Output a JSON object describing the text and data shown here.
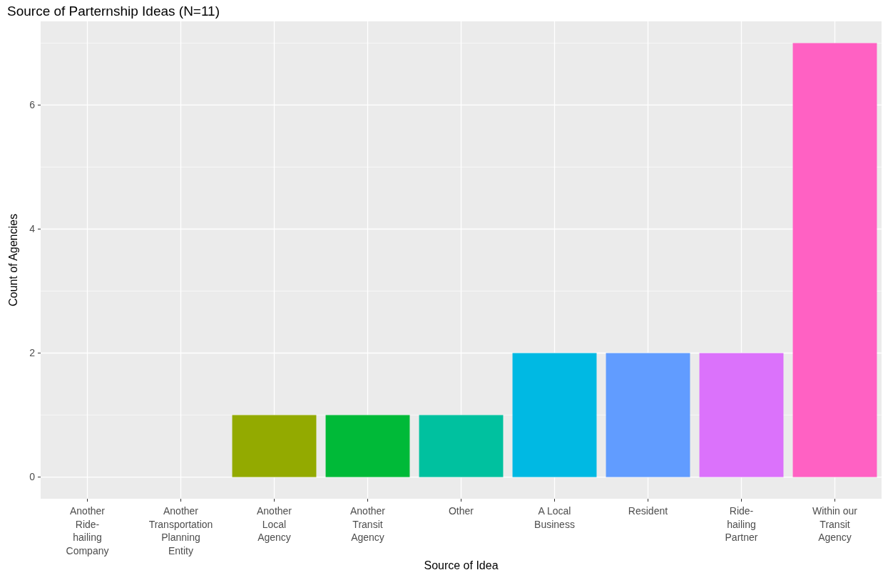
{
  "chart_data": {
    "type": "bar",
    "title": "Source of Parternship Ideas (N=11)",
    "xlabel": "Source of Idea",
    "ylabel": "Count of Agencies",
    "categories": [
      "Another Ride-hailing Company",
      "Another Transportation Planning Entity",
      "Another Local Agency",
      "Another Transit Agency",
      "Other",
      "A Local Business",
      "Resident",
      "Ride-hailing Partner",
      "Within our Transit Agency"
    ],
    "values": [
      0,
      0,
      1,
      1,
      1,
      2,
      2,
      2,
      7
    ],
    "colors": [
      "#f8766d",
      "#d39200",
      "#93aa00",
      "#00ba38",
      "#00c19f",
      "#00b9e3",
      "#619cff",
      "#db72fb",
      "#ff61c3"
    ],
    "ylim": [
      -0.35,
      7.35
    ],
    "yticks": [
      0,
      2,
      4,
      6
    ],
    "grid": true
  }
}
